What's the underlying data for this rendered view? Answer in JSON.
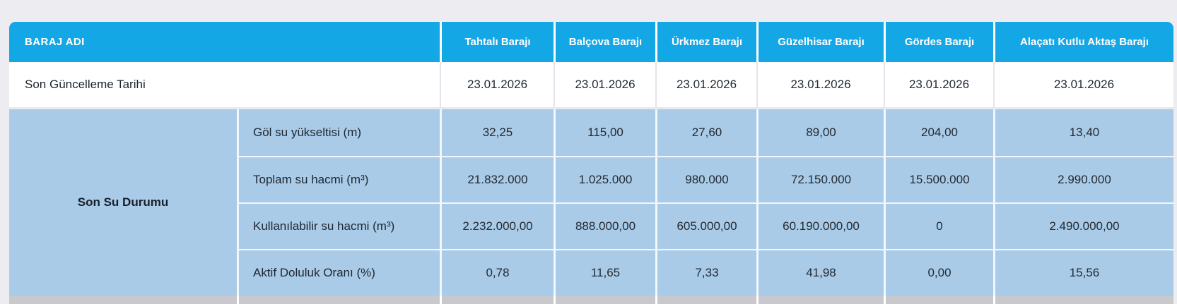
{
  "table": {
    "header": {
      "label": "BARAJ ADI",
      "columns": [
        "Tahtalı Barajı",
        "Balçova Barajı",
        "Ürkmez Barajı",
        "Güzelhisar Barajı",
        "Gördes Barajı",
        "Alaçatı Kutlu Aktaş Barajı"
      ]
    },
    "update_row": {
      "label": "Son Güncelleme Tarihi",
      "values": [
        "23.01.2026",
        "23.01.2026",
        "23.01.2026",
        "23.01.2026",
        "23.01.2026",
        "23.01.2026"
      ]
    },
    "section": {
      "label": "Son Su Durumu",
      "rows": [
        {
          "label": "Göl su yükseltisi (m)",
          "values": [
            "32,25",
            "115,00",
            "27,60",
            "89,00",
            "204,00",
            "13,40"
          ]
        },
        {
          "label": "Toplam su hacmi (m³)",
          "values": [
            "21.832.000",
            "1.025.000",
            "980.000",
            "72.150.000",
            "15.500.000",
            "2.990.000"
          ]
        },
        {
          "label": "Kullanılabilir su hacmi (m³)",
          "values": [
            "2.232.000,00",
            "888.000,00",
            "605.000,00",
            "60.190.000,00",
            "0",
            "2.490.000,00"
          ]
        },
        {
          "label": "Aktif Doluluk Oranı (%)",
          "values": [
            "0,78",
            "11,65",
            "7,33",
            "41,98",
            "0,00",
            "15,56"
          ]
        }
      ]
    },
    "colors": {
      "header_bg": "#14a7e6",
      "section_bg": "#a9cbe7",
      "page_bg": "#ededf1",
      "clipped_row_bg": "#c9c9cd",
      "text": "#222b35"
    }
  }
}
